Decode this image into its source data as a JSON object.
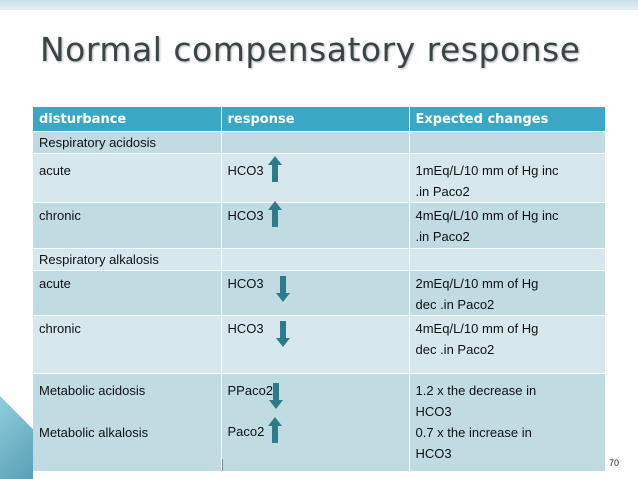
{
  "title": "Normal compensatory response",
  "headers": [
    "disturbance",
    "response",
    "Expected changes"
  ],
  "rows": [
    {
      "kind": "section",
      "c1": "Respiratory acidosis",
      "c2": "",
      "c3a": "",
      "c3b": ""
    },
    {
      "kind": "data",
      "c1": "acute",
      "c2": "HCO3",
      "arrow": "up",
      "c3a": "1mEq/L/10 mm of Hg inc",
      "c3b": ".in Paco2"
    },
    {
      "kind": "data",
      "c1": "chronic",
      "c2": "HCO3",
      "arrow": "up",
      "c3a": "4mEq/L/10 mm of Hg inc",
      "c3b": ".in Paco2"
    },
    {
      "kind": "section",
      "c1": "Respiratory alkalosis",
      "c2": "",
      "c3a": "",
      "c3b": ""
    },
    {
      "kind": "data",
      "c1": "acute",
      "c2": "HCO3",
      "arrow": "down",
      "c3a": "2mEq/L/10 mm of Hg",
      "c3b": "dec .in Paco2"
    },
    {
      "kind": "data",
      "c1": "chronic",
      "c2": "HCO3",
      "arrow": "down",
      "c3a": "4mEq/L/10 mm of Hg",
      "c3b": "dec .in Paco2"
    }
  ],
  "metabolic": {
    "acidosis_label": "Metabolic acidosis",
    "acidosis_response": "PPaco2",
    "acidosis_change_a": "1.2 x the decrease in",
    "acidosis_change_b": "HCO3",
    "alkalosis_label": "Metabolic alkalosis",
    "alkalosis_response": "Paco2",
    "alkalosis_change_a": "0.7 x the increase in",
    "alkalosis_change_b": "HCO3"
  },
  "page_number": "70",
  "colors": {
    "header": "#3aa7c4",
    "row_light": "#d6e8ee",
    "row_dark": "#c1dbe3",
    "arrow": "#2d7a8a"
  }
}
